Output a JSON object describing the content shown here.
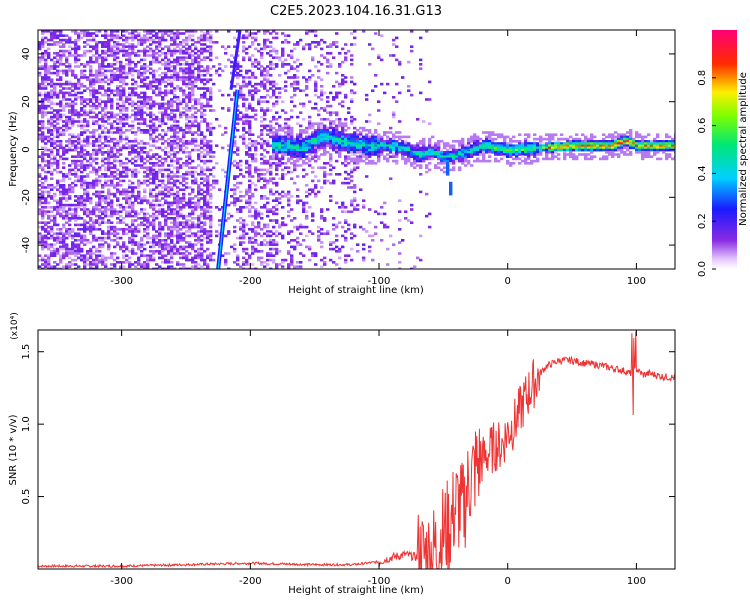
{
  "title": "C2E5.2023.104.16.31.G13",
  "colors": {
    "snr_line": "#ee3333",
    "axis": "#000000",
    "background": "#ffffff"
  },
  "chart_data": [
    {
      "type": "heatmap",
      "name_id": "spectrogram",
      "title": "C2E5.2023.104.16.31.G13",
      "xlabel": "Height of straight line (km)",
      "ylabel": "Frequency (Hz)",
      "xlim": [
        -365,
        130
      ],
      "ylim": [
        -50,
        50
      ],
      "xticks": [
        -300,
        -200,
        -100,
        0,
        100
      ],
      "yticks": [
        -40,
        -20,
        0,
        20,
        40
      ],
      "colorbar": {
        "label": "Normalized spectral amplitude",
        "range": [
          0,
          1
        ],
        "ticks": [
          0.0,
          0.2,
          0.4,
          0.6,
          0.8
        ],
        "tick_labels": [
          "0.0",
          "0.2",
          "0.4",
          "0.6",
          "0.8"
        ],
        "colormap": "rainbow (white-violet-blue-cyan-green-yellow-red-magenta)"
      },
      "features": {
        "tone_center_hz": [
          [
            -175,
            2
          ],
          [
            -160,
            1
          ],
          [
            -145,
            6
          ],
          [
            -135,
            5
          ],
          [
            -125,
            3
          ],
          [
            -110,
            2
          ],
          [
            -95,
            2
          ],
          [
            -80,
            1
          ],
          [
            -70,
            -2
          ],
          [
            -60,
            0
          ],
          [
            -50,
            -3
          ],
          [
            -40,
            -2
          ],
          [
            -30,
            0
          ],
          [
            -20,
            2
          ],
          [
            -10,
            1
          ],
          [
            0,
            0
          ],
          [
            20,
            1
          ],
          [
            50,
            2
          ],
          [
            80,
            2
          ],
          [
            90,
            4
          ],
          [
            100,
            2
          ],
          [
            130,
            2
          ]
        ],
        "diagonal_trace": {
          "start": [
            -225,
            -50
          ],
          "end": [
            -210,
            25
          ]
        },
        "upper_trace": {
          "start": [
            -215,
            25
          ],
          "end": [
            -208,
            50
          ]
        },
        "low_branch": {
          "start": [
            -50,
            0
          ],
          "end": [
            -45,
            -18
          ]
        }
      }
    },
    {
      "type": "line",
      "name_id": "snr",
      "title": "",
      "xlabel": "Height of straight line (km)",
      "ylabel": "SNR (10 * v/v)",
      "multiplier_label": "(x10⁴)",
      "xlim": [
        -365,
        130
      ],
      "ylim": [
        0,
        1.65
      ],
      "xticks": [
        -300,
        -200,
        -100,
        0,
        100
      ],
      "yticks": [
        0.5,
        1.0,
        1.5
      ],
      "ytick_labels": [
        "0.5",
        "1.0",
        "1.5"
      ],
      "series": [
        {
          "x": [
            -365,
            -300,
            -250,
            -200,
            -150,
            -120,
            -100,
            -90,
            -80,
            -70,
            -60,
            -55,
            -50,
            -45,
            -40,
            -35,
            -30,
            -25,
            -20,
            -15,
            -10,
            -5,
            0,
            5,
            10,
            15,
            20,
            25,
            30,
            40,
            50,
            60,
            70,
            80,
            90,
            95,
            100,
            105,
            110,
            120,
            130
          ],
          "y": [
            0.02,
            0.02,
            0.03,
            0.04,
            0.03,
            0.03,
            0.05,
            0.08,
            0.1,
            0.08,
            0.1,
            0.15,
            0.25,
            0.3,
            0.45,
            0.4,
            0.6,
            0.7,
            0.75,
            0.8,
            0.85,
            0.85,
            0.95,
            1.0,
            1.1,
            1.2,
            1.28,
            1.35,
            1.4,
            1.44,
            1.44,
            1.42,
            1.41,
            1.39,
            1.37,
            1.35,
            1.38,
            1.34,
            1.35,
            1.33,
            1.32
          ]
        }
      ]
    }
  ]
}
